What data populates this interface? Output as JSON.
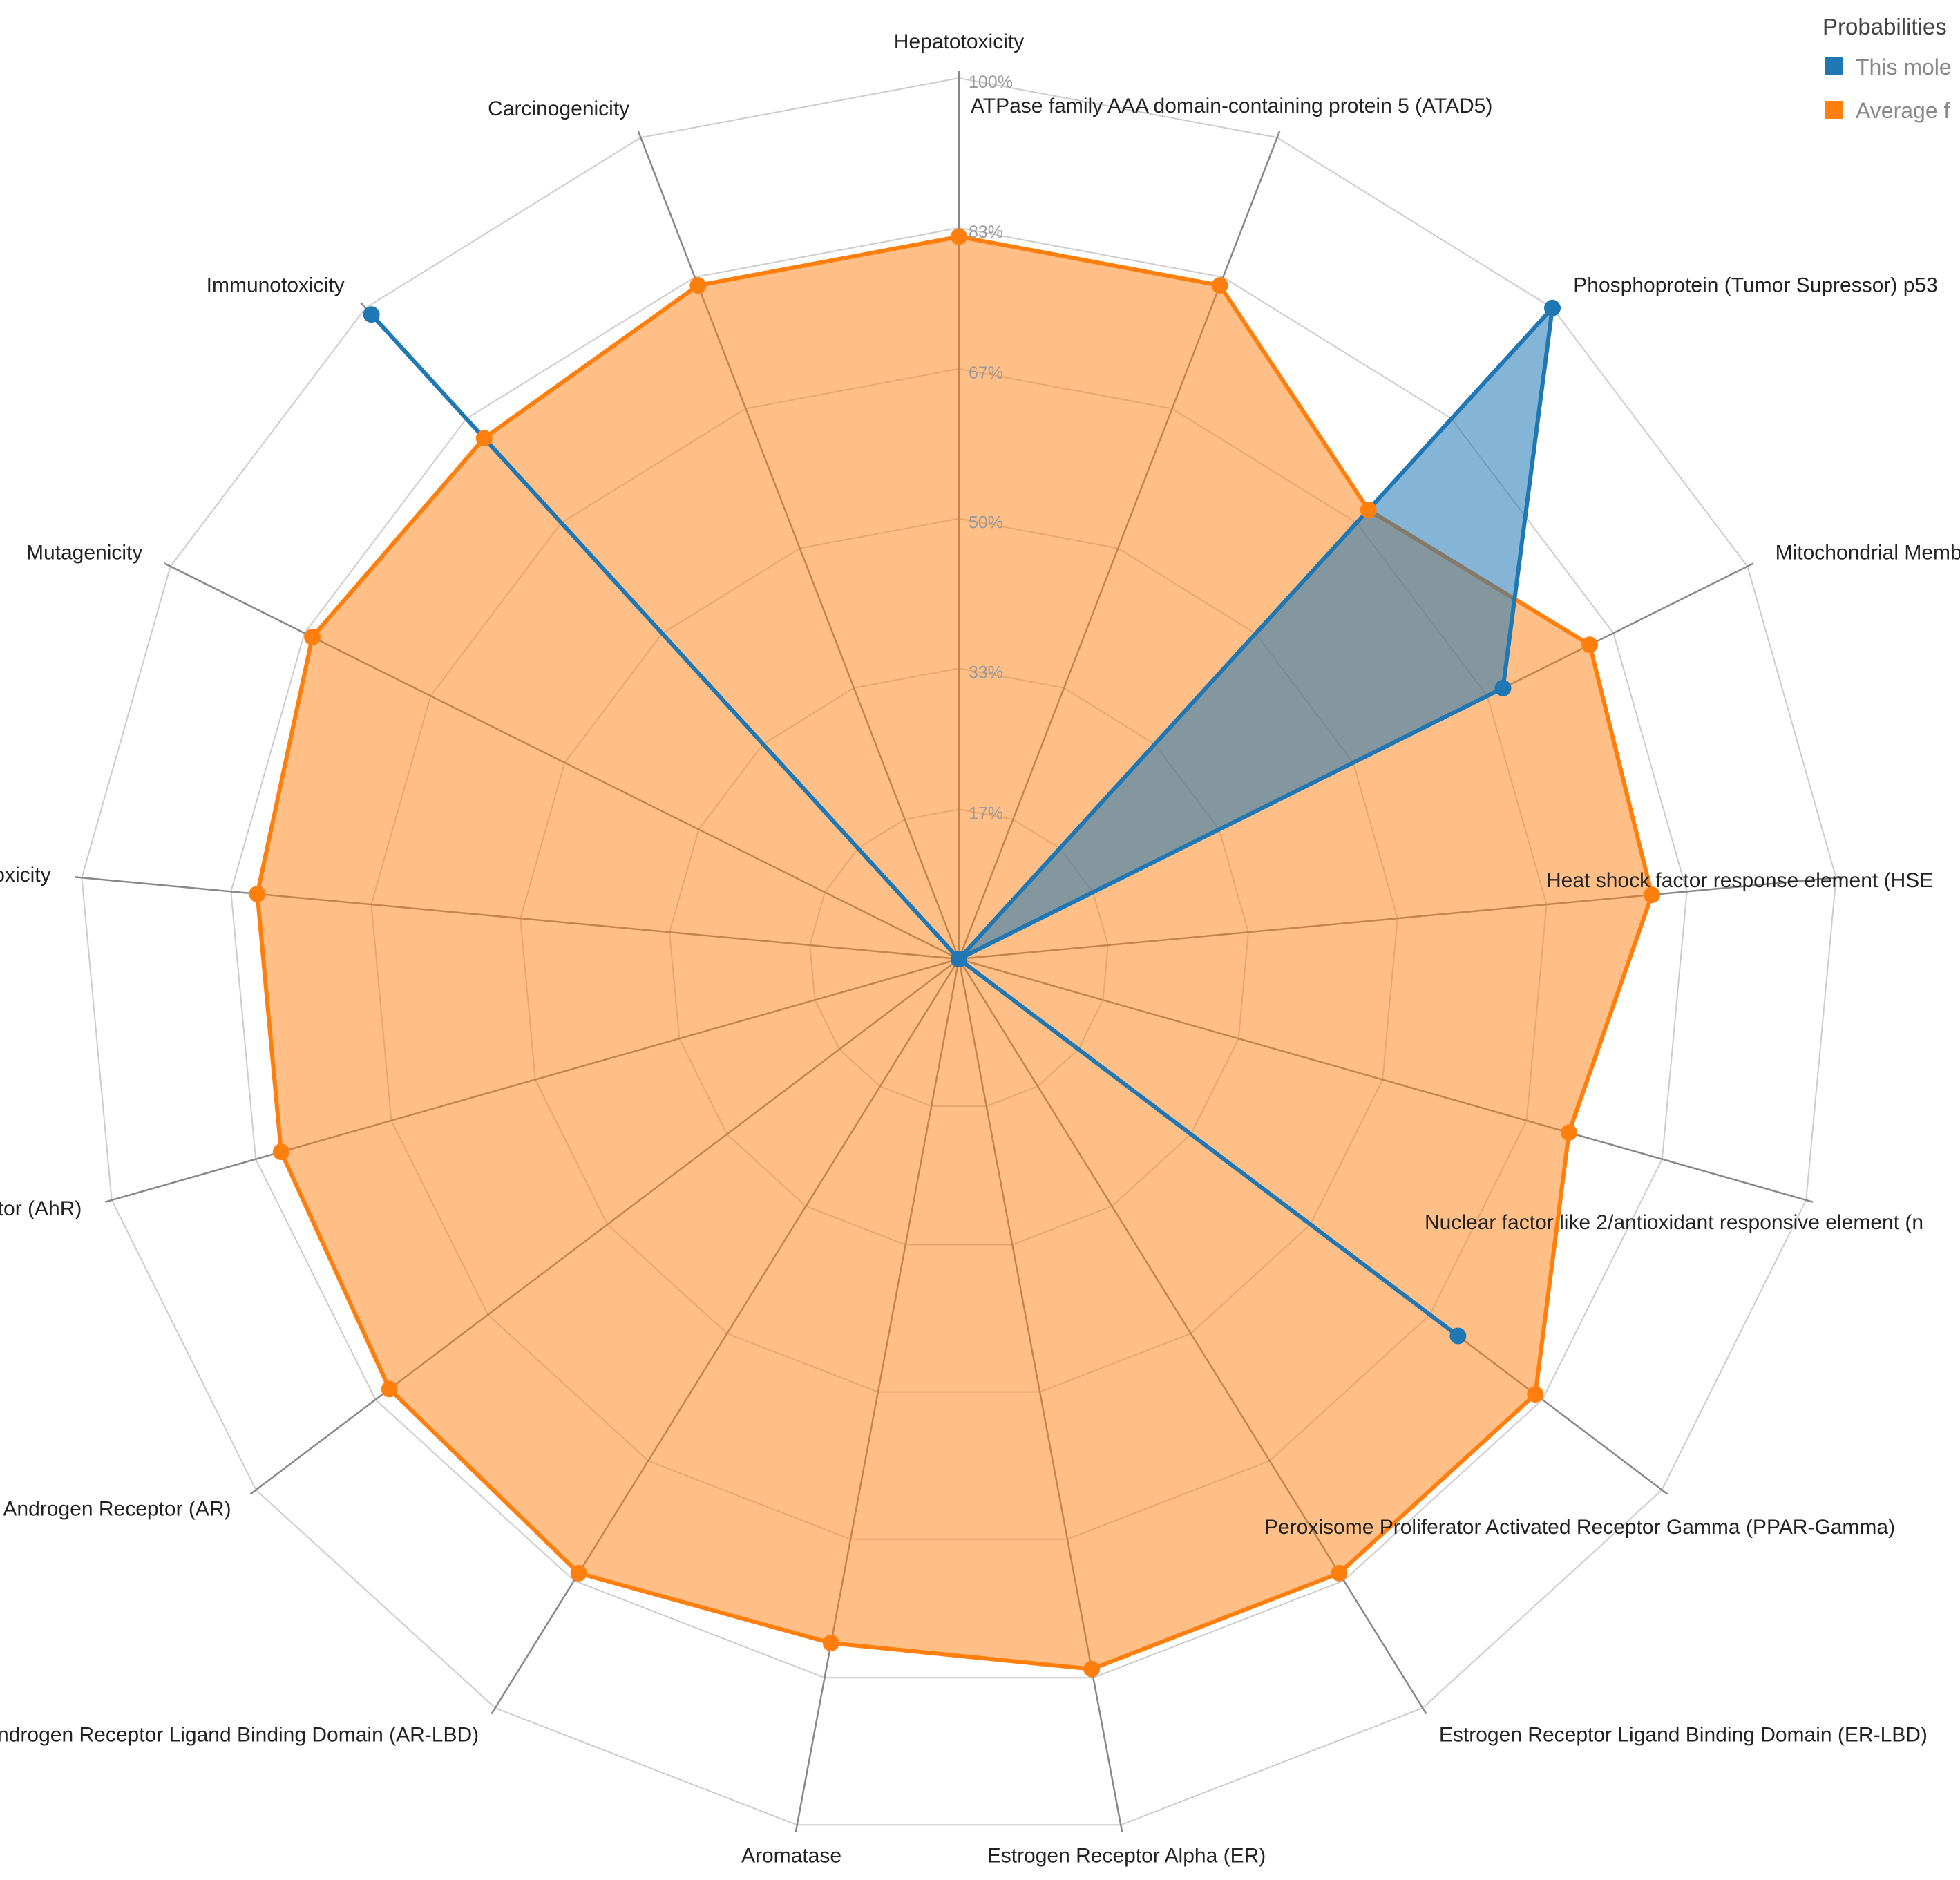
{
  "chart_data": {
    "type": "radar",
    "legend": {
      "title": "Probabilities",
      "placement": "top-right",
      "items": [
        "This mole",
        "Average f"
      ]
    },
    "tick_labels": [
      "17%",
      "33%",
      "50%",
      "67%",
      "83%",
      "100%"
    ],
    "axes": [
      "Hepatotoxicity",
      "ATPase family AAA domain-containing protein 5 (ATAD5)",
      "Phosphoprotein (Tumor Supressor) p53",
      "Mitochondrial Membrane Potential (MMP)",
      "Heat shock factor response element (HSE",
      "Nuclear factor like 2/antioxidant responsive element (n",
      "Peroxisome Proliferator Activated Receptor Gamma (PPAR-Gamma)",
      "Estrogen Receptor Ligand Binding Domain (ER-LBD)",
      "Estrogen Receptor Alpha (ER)",
      "Aromatase",
      "Androgen Receptor Ligand Binding Domain (AR-LBD)",
      "Androgen Receptor (AR)",
      "Aryl hydrocarbon Receptor (AhR)",
      "Cytotoxicity",
      "Mutagenicity",
      "Immunotoxicity",
      "Carcinogenicity"
    ],
    "rmax": 100,
    "series": [
      {
        "name": "This mole",
        "color": "#1f77b4",
        "values": [
          0,
          0,
          100,
          69,
          0,
          0,
          71,
          0,
          0,
          0,
          0,
          0,
          0,
          0,
          0,
          99,
          0
        ]
      },
      {
        "name": "Average f",
        "color": "#ff7f0e",
        "values": [
          82,
          82,
          69,
          80,
          79,
          72,
          82,
          82,
          82,
          79,
          82,
          81,
          80,
          80,
          82,
          80,
          82
        ]
      }
    ]
  }
}
